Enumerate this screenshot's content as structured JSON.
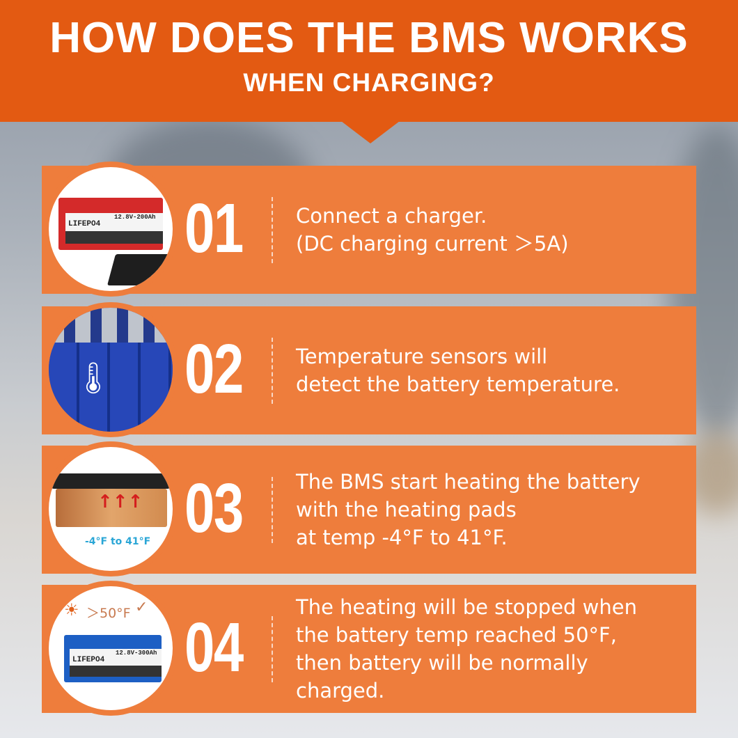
{
  "header": {
    "title": "HOW DOES THE BMS WORKS",
    "subtitle": "WHEN CHARGING?"
  },
  "colors": {
    "header": "#e35a12",
    "card": "#ee7d3c",
    "text": "#ffffff"
  },
  "steps": [
    {
      "number": "01",
      "lines": [
        "Connect a charger.",
        "(DC charging current ＞5A)"
      ],
      "image": {
        "brand": "LIFEPO4",
        "spec": "12.8V-200Ah",
        "color": "red"
      }
    },
    {
      "number": "02",
      "lines": [
        "Temperature sensors will",
        "detect the battery temperature."
      ],
      "image": {
        "icon": "thermometer-icon",
        "color": "blue"
      }
    },
    {
      "number": "03",
      "lines": [
        "The BMS start heating the battery",
        "with the heating pads",
        "at temp -4°F to 41°F."
      ],
      "image": {
        "caption": "-4°F to 41°F",
        "icon": "heat-arrows-icon"
      }
    },
    {
      "number": "04",
      "lines": [
        "The heating will be stopped when",
        "the battery temp reached 50°F,",
        "then battery will be normally",
        "charged."
      ],
      "image": {
        "caption": "＞50°F",
        "brand": "LIFEPO4",
        "spec": "12.8V-300Ah",
        "color": "blue"
      }
    }
  ]
}
